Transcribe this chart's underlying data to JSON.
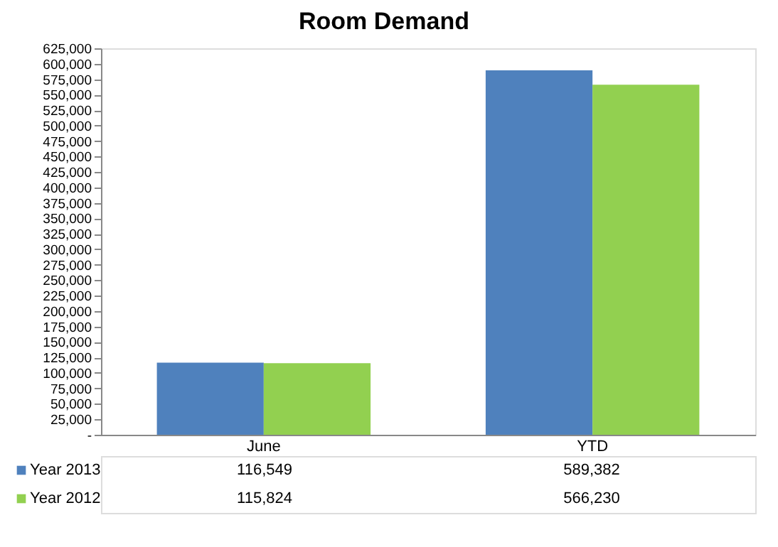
{
  "chart_data": {
    "type": "bar",
    "title": "Room Demand",
    "categories": [
      "June",
      "YTD"
    ],
    "series": [
      {
        "name": "Year 2013",
        "color": "#4f81bd",
        "values": [
          116549,
          589382
        ],
        "value_labels": [
          "116,549",
          "589,382"
        ]
      },
      {
        "name": "Year 2012",
        "color": "#92d050",
        "values": [
          115824,
          566230
        ],
        "value_labels": [
          "115,824",
          "566,230"
        ]
      }
    ],
    "ylim": [
      0,
      625000
    ],
    "yticks": [
      {
        "value": 0,
        "label": "-"
      },
      {
        "value": 25000,
        "label": "25,000"
      },
      {
        "value": 50000,
        "label": "50,000"
      },
      {
        "value": 75000,
        "label": "75,000"
      },
      {
        "value": 100000,
        "label": "100,000"
      },
      {
        "value": 125000,
        "label": "125,000"
      },
      {
        "value": 150000,
        "label": "150,000"
      },
      {
        "value": 175000,
        "label": "175,000"
      },
      {
        "value": 200000,
        "label": "200,000"
      },
      {
        "value": 225000,
        "label": "225,000"
      },
      {
        "value": 250000,
        "label": "250,000"
      },
      {
        "value": 275000,
        "label": "275,000"
      },
      {
        "value": 300000,
        "label": "300,000"
      },
      {
        "value": 325000,
        "label": "325,000"
      },
      {
        "value": 350000,
        "label": "350,000"
      },
      {
        "value": 375000,
        "label": "375,000"
      },
      {
        "value": 400000,
        "label": "400,000"
      },
      {
        "value": 425000,
        "label": "425,000"
      },
      {
        "value": 450000,
        "label": "450,000"
      },
      {
        "value": 475000,
        "label": "475,000"
      },
      {
        "value": 500000,
        "label": "500,000"
      },
      {
        "value": 525000,
        "label": "525,000"
      },
      {
        "value": 550000,
        "label": "550,000"
      },
      {
        "value": 575000,
        "label": "575,000"
      },
      {
        "value": 600000,
        "label": "600,000"
      },
      {
        "value": 625000,
        "label": "625,000"
      }
    ],
    "grid": false,
    "legend": "bottom left"
  }
}
